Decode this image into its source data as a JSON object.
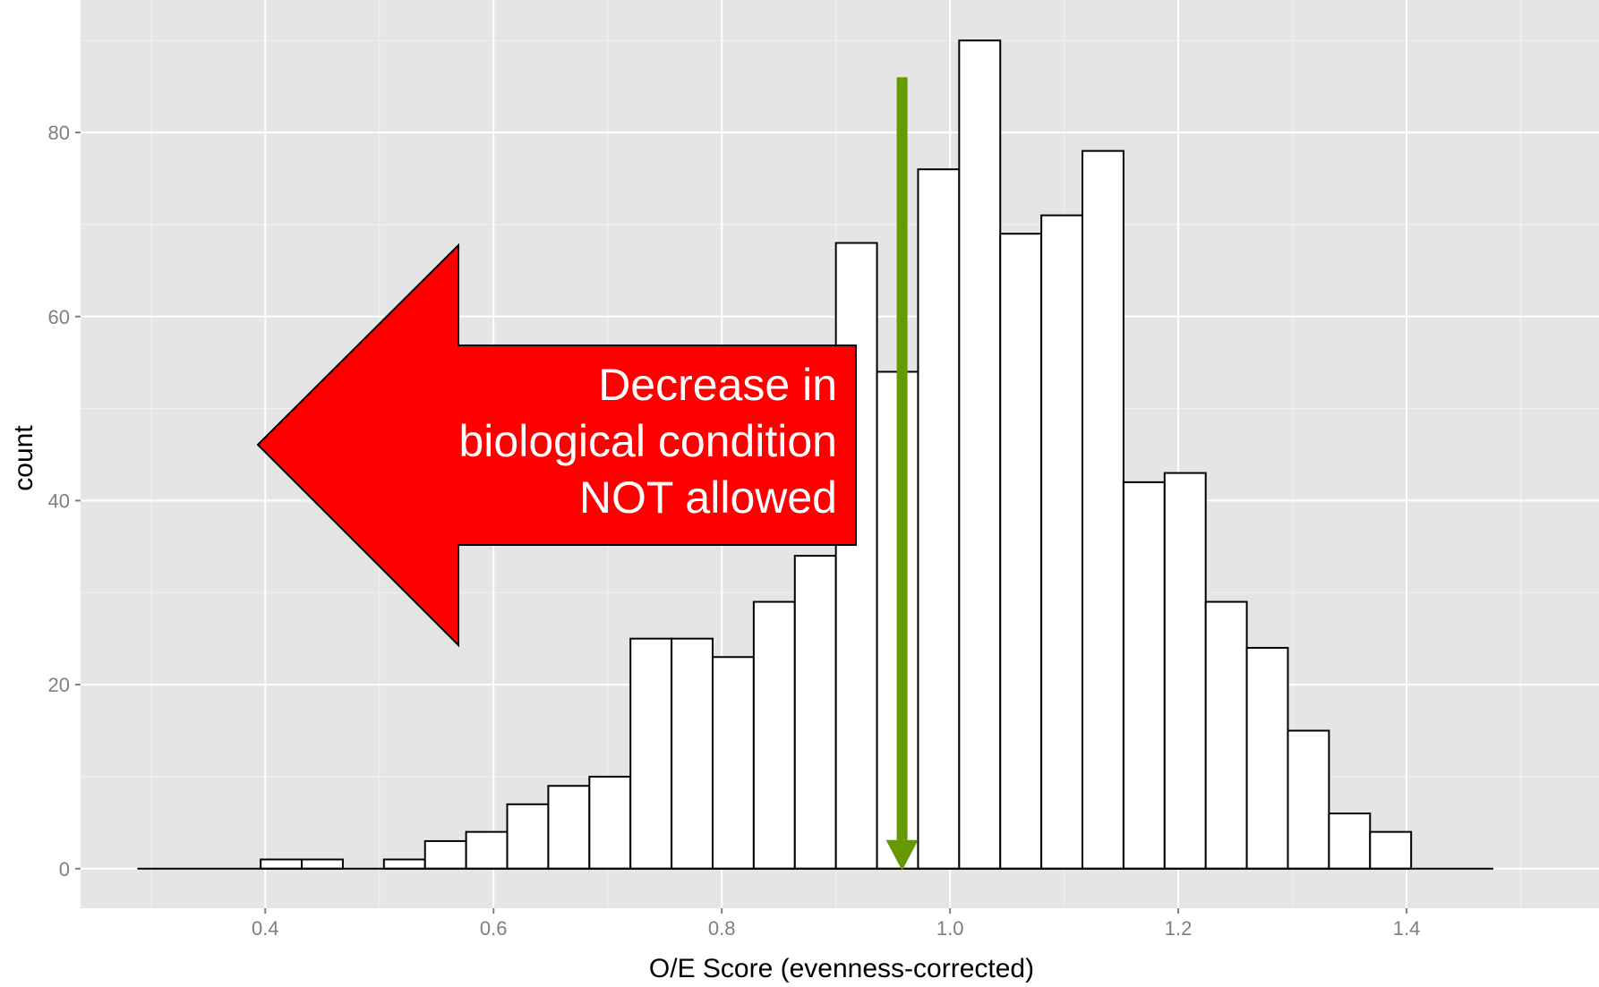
{
  "chart_data": {
    "type": "bar",
    "title": "",
    "xlabel": "O/E Score (evenness-corrected)",
    "ylabel": "count",
    "xlim": [
      0.2382,
      1.5686
    ],
    "ylim": [
      -4.3,
      94.4
    ],
    "grid": true,
    "x_ticks": [
      0.4,
      0.6,
      0.8,
      1.0,
      1.2,
      1.4
    ],
    "x_tick_labels": [
      "0.4",
      "0.6",
      "0.8",
      "1.0",
      "1.2",
      "1.4"
    ],
    "y_ticks": [
      0,
      20,
      40,
      60,
      80
    ],
    "y_tick_labels": [
      "0",
      "20",
      "40",
      "60",
      "80"
    ],
    "bin_width": 0.036,
    "bin_left_edges": [
      0.288,
      0.324,
      0.36,
      0.396,
      0.432,
      0.468,
      0.504,
      0.54,
      0.576,
      0.612,
      0.648,
      0.684,
      0.72,
      0.756,
      0.792,
      0.828,
      0.864,
      0.9,
      0.936,
      0.972,
      1.008,
      1.044,
      1.08,
      1.116,
      1.152,
      1.188,
      1.224,
      1.26,
      1.296,
      1.332,
      1.368,
      1.404,
      1.44
    ],
    "values": [
      0,
      0,
      0,
      1,
      1,
      0,
      1,
      3,
      4,
      7,
      9,
      10,
      25,
      25,
      23,
      29,
      34,
      68,
      54,
      76,
      90,
      69,
      71,
      78,
      42,
      43,
      29,
      24,
      15,
      6,
      4,
      0,
      0
    ],
    "bar_fill": "#ffffff",
    "bar_stroke": "#000000",
    "panel_background": "#e5e5e5",
    "grid_color": "#ffffff",
    "annotations": {
      "green_arrow": {
        "x": 0.958,
        "y_start": 86,
        "y_end": 0,
        "color": "#669900"
      },
      "red_arrow": {
        "direction": "left",
        "color": "#ff0000",
        "text_lines": [
          "Decrease in",
          "biological condition",
          "NOT allowed"
        ]
      }
    }
  }
}
